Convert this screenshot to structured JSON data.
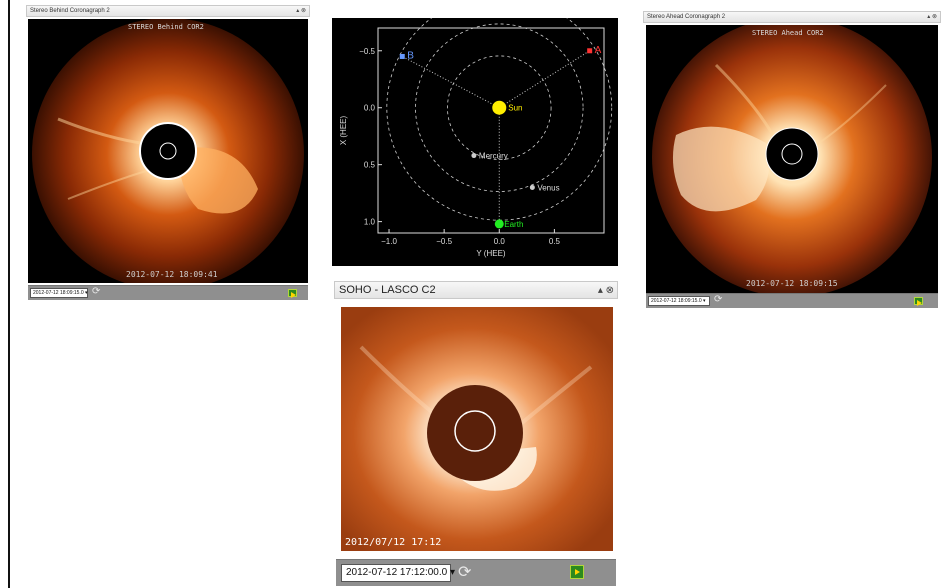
{
  "panels": {
    "behind": {
      "header": "Stereo Behind Coronagraph 2",
      "instrument_label": "STEREO Behind COR2",
      "timestamp": "2012-07-12 18:09:41",
      "select_value": "2012-07-12 18:09:15.0",
      "controls": "▴ ⊗"
    },
    "ahead": {
      "header": "Stereo Ahead Coronagraph 2",
      "instrument_label": "STEREO Ahead COR2",
      "timestamp": "2012-07-12 18:09:15",
      "select_value": "2012-07-12 18:09:15.0",
      "controls": "▴ ⊗"
    },
    "lasco": {
      "header": "SOHO - LASCO C2",
      "timestamp": "2012/07/12 17:12",
      "select_value": "2012-07-12 17:12:00.0",
      "controls": "▴ ⊗"
    }
  },
  "orbit_plot": {
    "xlabel": "Y (HEE)",
    "ylabel": "X (HEE)",
    "x_ticks": [
      "−1.0",
      "−0.5",
      "0.0",
      "0.5"
    ],
    "y_ticks": [
      "−0.5",
      "0.0",
      "0.5",
      "1.0"
    ],
    "xlim": [
      -1.1,
      0.95
    ],
    "ylim": [
      -0.7,
      1.1
    ],
    "bodies": [
      {
        "name": "Sun",
        "x": 0.0,
        "y": 0.0,
        "color": "#ffee00"
      },
      {
        "name": "Mercury",
        "x": -0.23,
        "y": 0.42,
        "color": "#cccccc"
      },
      {
        "name": "Venus",
        "x": 0.3,
        "y": 0.7,
        "color": "#cccccc"
      },
      {
        "name": "Earth",
        "x": 0.0,
        "y": 1.02,
        "color": "#22ee22"
      }
    ],
    "spacecraft": [
      {
        "label": "B",
        "x": -0.88,
        "y": -0.45,
        "color": "#6699ff"
      },
      {
        "label": "A",
        "x": 0.82,
        "y": -0.5,
        "color": "#ff3333"
      }
    ]
  },
  "colors": {
    "toolbar": "#8f8f8f",
    "accent_play": "#2c8a1d"
  }
}
